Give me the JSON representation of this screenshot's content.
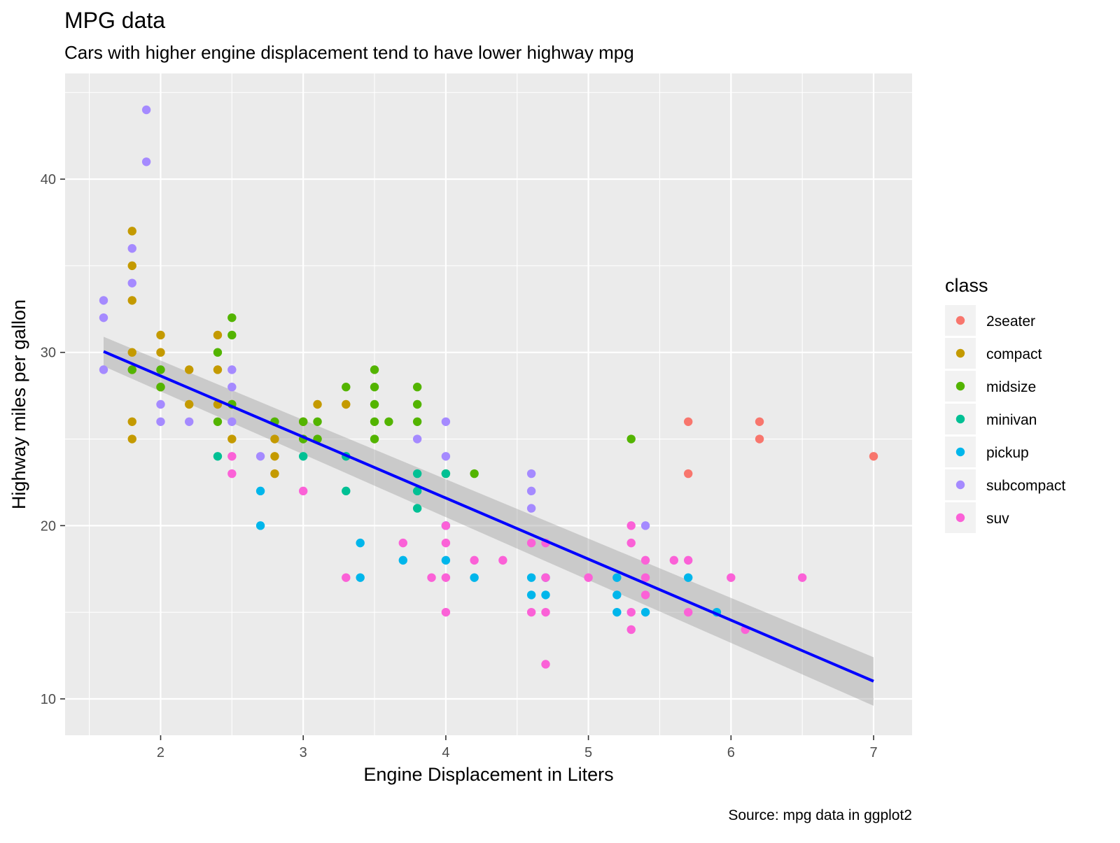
{
  "chart_data": {
    "type": "scatter",
    "title": "MPG data",
    "subtitle": "Cars with higher engine displacement tend to have lower highway mpg",
    "caption": "Source: mpg data in ggplot2",
    "xlabel": "Engine Displacement in Liters",
    "ylabel": "Highway miles per gallon",
    "xlim": [
      1.33,
      7.27
    ],
    "ylim": [
      7.9,
      46.1
    ],
    "x_ticks": [
      2,
      3,
      4,
      5,
      6,
      7
    ],
    "y_ticks": [
      10,
      20,
      30,
      40
    ],
    "grid": true,
    "legend": {
      "title": "class",
      "placement": "right",
      "entries": [
        {
          "label": "2seater",
          "color": "#F8766D"
        },
        {
          "label": "compact",
          "color": "#C49A00"
        },
        {
          "label": "midsize",
          "color": "#53B400"
        },
        {
          "label": "minivan",
          "color": "#00C094"
        },
        {
          "label": "pickup",
          "color": "#00B6EB"
        },
        {
          "label": "subcompact",
          "color": "#A58AFF"
        },
        {
          "label": "suv",
          "color": "#FB61D7"
        }
      ]
    },
    "trend": {
      "x": [
        1.6,
        7.0
      ],
      "y": [
        30.05,
        11.02
      ],
      "band_lower": [
        29.2,
        9.6
      ],
      "band_upper": [
        30.9,
        12.4
      ],
      "color": "#0000FF"
    },
    "series": [
      {
        "name": "2seater",
        "color": "#F8766D",
        "points": [
          [
            5.7,
            26
          ],
          [
            5.7,
            23
          ],
          [
            6.2,
            26
          ],
          [
            6.2,
            25
          ],
          [
            7.0,
            24
          ]
        ]
      },
      {
        "name": "compact",
        "color": "#C49A00",
        "points": [
          [
            1.8,
            37
          ],
          [
            1.8,
            35
          ],
          [
            1.8,
            33
          ],
          [
            1.8,
            30
          ],
          [
            1.8,
            29
          ],
          [
            1.8,
            26
          ],
          [
            1.8,
            25
          ],
          [
            2.0,
            31
          ],
          [
            2.0,
            30
          ],
          [
            2.0,
            28
          ],
          [
            2.2,
            29
          ],
          [
            2.2,
            27
          ],
          [
            2.4,
            31
          ],
          [
            2.4,
            29
          ],
          [
            2.4,
            27
          ],
          [
            2.5,
            27
          ],
          [
            2.5,
            25
          ],
          [
            2.8,
            25
          ],
          [
            2.8,
            24
          ],
          [
            2.8,
            23
          ],
          [
            3.0,
            26
          ],
          [
            3.1,
            27
          ],
          [
            3.3,
            27
          ]
        ]
      },
      {
        "name": "midsize",
        "color": "#53B400",
        "points": [
          [
            1.8,
            29
          ],
          [
            2.0,
            29
          ],
          [
            2.0,
            28
          ],
          [
            2.4,
            30
          ],
          [
            2.4,
            26
          ],
          [
            2.5,
            32
          ],
          [
            2.5,
            31
          ],
          [
            2.5,
            27
          ],
          [
            2.8,
            26
          ],
          [
            3.0,
            26
          ],
          [
            3.0,
            25
          ],
          [
            3.1,
            26
          ],
          [
            3.1,
            25
          ],
          [
            3.3,
            28
          ],
          [
            3.5,
            29
          ],
          [
            3.5,
            28
          ],
          [
            3.5,
            27
          ],
          [
            3.5,
            26
          ],
          [
            3.5,
            25
          ],
          [
            3.6,
            26
          ],
          [
            3.8,
            28
          ],
          [
            3.8,
            27
          ],
          [
            3.8,
            26
          ],
          [
            4.0,
            23
          ],
          [
            4.2,
            23
          ],
          [
            5.3,
            25
          ]
        ]
      },
      {
        "name": "minivan",
        "color": "#00C094",
        "points": [
          [
            2.4,
            24
          ],
          [
            3.0,
            24
          ],
          [
            3.3,
            24
          ],
          [
            3.3,
            22
          ],
          [
            3.8,
            23
          ],
          [
            3.8,
            22
          ],
          [
            3.8,
            21
          ],
          [
            4.0,
            23
          ]
        ]
      },
      {
        "name": "pickup",
        "color": "#00B6EB",
        "points": [
          [
            2.7,
            22
          ],
          [
            2.7,
            20
          ],
          [
            3.4,
            19
          ],
          [
            3.4,
            17
          ],
          [
            3.7,
            18
          ],
          [
            4.0,
            20
          ],
          [
            4.0,
            18
          ],
          [
            4.2,
            17
          ],
          [
            4.6,
            17
          ],
          [
            4.6,
            16
          ],
          [
            4.7,
            17
          ],
          [
            4.7,
            16
          ],
          [
            5.2,
            17
          ],
          [
            5.2,
            16
          ],
          [
            5.2,
            15
          ],
          [
            5.4,
            15
          ],
          [
            5.7,
            17
          ],
          [
            5.9,
            15
          ]
        ]
      },
      {
        "name": "subcompact",
        "color": "#A58AFF",
        "points": [
          [
            1.6,
            33
          ],
          [
            1.6,
            32
          ],
          [
            1.6,
            29
          ],
          [
            1.8,
            36
          ],
          [
            1.8,
            34
          ],
          [
            1.9,
            44
          ],
          [
            1.9,
            41
          ],
          [
            2.0,
            27
          ],
          [
            2.0,
            26
          ],
          [
            2.2,
            26
          ],
          [
            2.5,
            29
          ],
          [
            2.5,
            28
          ],
          [
            2.5,
            26
          ],
          [
            2.7,
            24
          ],
          [
            3.8,
            25
          ],
          [
            4.0,
            26
          ],
          [
            4.0,
            24
          ],
          [
            4.6,
            23
          ],
          [
            4.6,
            22
          ],
          [
            4.6,
            21
          ],
          [
            5.4,
            20
          ]
        ]
      },
      {
        "name": "suv",
        "color": "#FB61D7",
        "points": [
          [
            2.5,
            24
          ],
          [
            2.5,
            23
          ],
          [
            3.0,
            22
          ],
          [
            3.3,
            17
          ],
          [
            3.7,
            19
          ],
          [
            3.9,
            17
          ],
          [
            4.0,
            20
          ],
          [
            4.0,
            19
          ],
          [
            4.0,
            17
          ],
          [
            4.0,
            15
          ],
          [
            4.2,
            18
          ],
          [
            4.4,
            18
          ],
          [
            4.6,
            19
          ],
          [
            4.6,
            15
          ],
          [
            4.7,
            19
          ],
          [
            4.7,
            17
          ],
          [
            4.7,
            15
          ],
          [
            4.7,
            12
          ],
          [
            5.0,
            17
          ],
          [
            5.3,
            20
          ],
          [
            5.3,
            19
          ],
          [
            5.3,
            15
          ],
          [
            5.3,
            14
          ],
          [
            5.4,
            18
          ],
          [
            5.4,
            17
          ],
          [
            5.4,
            16
          ],
          [
            5.6,
            18
          ],
          [
            5.7,
            18
          ],
          [
            5.7,
            15
          ],
          [
            6.0,
            17
          ],
          [
            6.1,
            14
          ],
          [
            6.5,
            17
          ]
        ]
      }
    ]
  }
}
